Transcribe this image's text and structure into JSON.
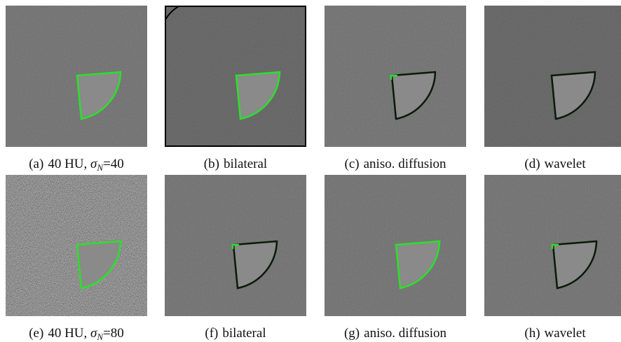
{
  "panels": [
    {
      "label": "(a)",
      "text": "40 HU, ",
      "symbol": "σ",
      "subscript": "N",
      "suffix": "=40"
    },
    {
      "label": "(b)",
      "text": "bilateral"
    },
    {
      "label": "(c)",
      "text": "aniso. diffusion"
    },
    {
      "label": "(d)",
      "text": "wavelet"
    },
    {
      "label": "(e)",
      "text": "40 HU, ",
      "symbol": "σ",
      "subscript": "N",
      "suffix": "=80"
    },
    {
      "label": "(f)",
      "text": "bilateral"
    },
    {
      "label": "(g)",
      "text": "aniso. diffusion"
    },
    {
      "label": "(h)",
      "text": "wavelet"
    }
  ]
}
